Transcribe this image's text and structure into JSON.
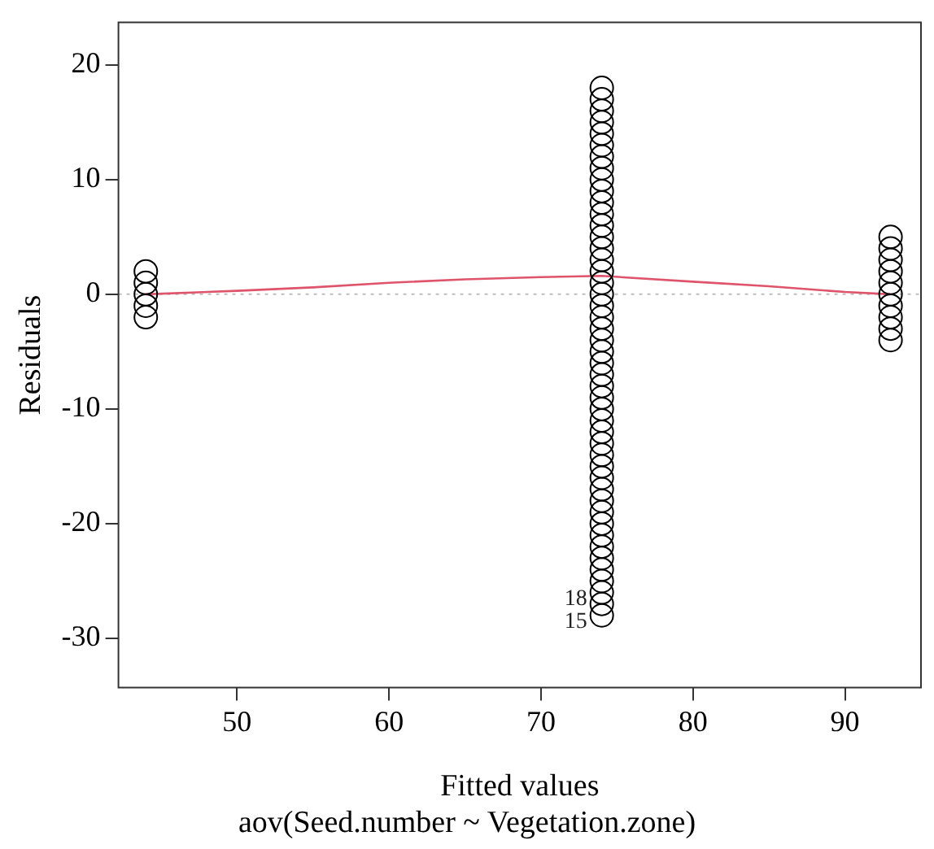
{
  "chart_data": {
    "type": "scatter",
    "xlabel": "Fitted values",
    "subtitle": "aov(Seed.number ~ Vegetation.zone)",
    "ylabel": "Residuals",
    "xlim": [
      42.2,
      95
    ],
    "xticks": [
      50,
      60,
      70,
      80,
      90
    ],
    "ylim": [
      -34.3,
      23.7
    ],
    "yticks": [
      -30,
      -20,
      -10,
      0,
      10,
      20
    ],
    "grid": false,
    "legend": false,
    "marker": "circle",
    "series": [
      {
        "color": "#000000",
        "x": [
          44,
          44,
          44,
          44,
          44
        ],
        "values": [
          -2,
          -1,
          0,
          1,
          2
        ]
      },
      {
        "color": "#000000",
        "x": [
          74,
          74,
          74,
          74,
          74,
          74,
          74,
          74,
          74,
          74,
          74,
          74,
          74,
          74,
          74,
          74,
          74,
          74,
          74,
          74,
          74,
          74,
          74,
          74,
          74,
          74,
          74,
          74,
          74,
          74,
          74,
          74,
          74,
          74,
          74,
          74,
          74,
          74,
          74,
          74,
          74,
          74,
          74,
          74,
          74,
          74,
          74
        ],
        "values": [
          -28,
          -27,
          -26,
          -25,
          -24,
          -23,
          -22,
          -21,
          -20,
          -19,
          -18,
          -17,
          -16,
          -15,
          -14,
          -13,
          -12,
          -11,
          -10,
          -9,
          -8,
          -7,
          -6,
          -5,
          -4,
          -3,
          -2,
          -1,
          0,
          1,
          2,
          3,
          4,
          5,
          6,
          7,
          8,
          9,
          10,
          11,
          12,
          13,
          14,
          15,
          16,
          17,
          18
        ]
      },
      {
        "color": "#000000",
        "x": [
          93,
          93,
          93,
          93,
          93,
          93,
          93,
          93,
          93,
          93
        ],
        "values": [
          -4,
          -3,
          -2,
          -1,
          0,
          1,
          2,
          3,
          4,
          5
        ]
      },
      {
        "type": "line",
        "color": "#df536b",
        "marker": "none",
        "x": [
          44,
          50,
          55,
          60,
          65,
          70,
          74,
          80,
          85,
          90,
          93
        ],
        "values": [
          0,
          0.3,
          0.6,
          1.0,
          1.3,
          1.5,
          1.6,
          1.1,
          0.7,
          0.2,
          0
        ]
      }
    ],
    "ref_lines": [
      {
        "axis": "y",
        "value": 0,
        "color": "#bebebe",
        "line_style": "dotted"
      }
    ],
    "annotations": [
      {
        "text": "18",
        "x": 74,
        "y": -28
      },
      {
        "text": "15",
        "x": 74,
        "y": -28
      }
    ]
  }
}
